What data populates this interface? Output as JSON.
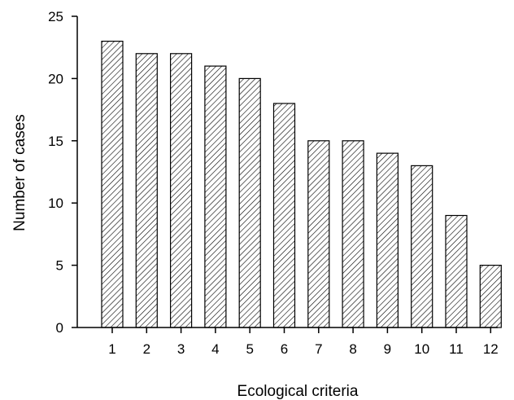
{
  "chart_data": {
    "type": "bar",
    "title": "",
    "xlabel": "Ecological criteria",
    "ylabel": "Number of cases",
    "categories": [
      "1",
      "2",
      "3",
      "4",
      "5",
      "6",
      "7",
      "8",
      "9",
      "10",
      "11",
      "12"
    ],
    "values": [
      23,
      22,
      22,
      21,
      20,
      18,
      15,
      15,
      14,
      13,
      9,
      5
    ],
    "ylim": [
      0,
      25
    ],
    "yticks": [
      "0",
      "5",
      "10",
      "15",
      "20",
      "25"
    ],
    "grid": false,
    "bar_fill": "diagonal hatch",
    "colors": {
      "stroke": "#000000",
      "background": "#ffffff"
    }
  }
}
